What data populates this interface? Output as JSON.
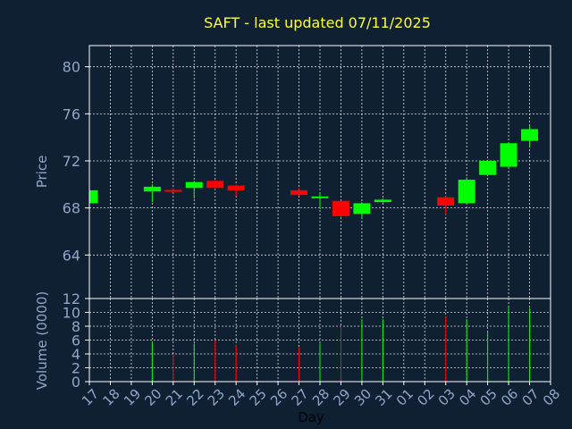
{
  "chart_data": {
    "type": "candlestick",
    "title": "SAFT - last updated 07/11/2025",
    "xlabel": "Day",
    "x_ticks": [
      "17",
      "18",
      "19",
      "20",
      "21",
      "22",
      "23",
      "24",
      "25",
      "26",
      "27",
      "28",
      "29",
      "30",
      "31",
      "01",
      "02",
      "03",
      "04",
      "05",
      "06",
      "07",
      "08"
    ],
    "price_panel": {
      "ylabel": "Price",
      "ylim": [
        60.3,
        81.8
      ],
      "yticks": [
        64,
        68,
        72,
        76,
        80
      ],
      "grid": true
    },
    "volume_panel": {
      "ylabel": "Volume (0000)",
      "ylim": [
        0,
        12
      ],
      "yticks": [
        0,
        2,
        4,
        6,
        8,
        10,
        12
      ],
      "grid": true
    },
    "up_color": "#00ff00",
    "down_color": "#ff0000",
    "candles": [
      {
        "x": "17",
        "open": 68.4,
        "close": 69.5,
        "high": 69.5,
        "low": 68.4,
        "volume": 0
      },
      {
        "x": "20",
        "open": 69.4,
        "close": 69.8,
        "high": 70.0,
        "low": 68.5,
        "volume": 5.8
      },
      {
        "x": "21",
        "open": 69.5,
        "close": 69.4,
        "high": 69.7,
        "low": 69.3,
        "volume": 4.0
      },
      {
        "x": "22",
        "open": 69.7,
        "close": 70.2,
        "high": 70.3,
        "low": 68.8,
        "volume": 5.5
      },
      {
        "x": "23",
        "open": 70.3,
        "close": 69.7,
        "high": 70.4,
        "low": 69.6,
        "volume": 6.0
      },
      {
        "x": "24",
        "open": 69.9,
        "close": 69.5,
        "high": 70.0,
        "low": 69.0,
        "volume": 5.3
      },
      {
        "x": "27",
        "open": 69.5,
        "close": 69.1,
        "high": 69.7,
        "low": 69.0,
        "volume": 5.0
      },
      {
        "x": "28",
        "open": 68.9,
        "close": 68.9,
        "high": 69.3,
        "low": 67.9,
        "volume": 5.5
      },
      {
        "x": "29",
        "open": 68.6,
        "close": 67.3,
        "high": 68.6,
        "low": 67.2,
        "volume": 8.0
      },
      {
        "x": "30",
        "open": 67.5,
        "close": 68.4,
        "high": 68.5,
        "low": 67.1,
        "volume": 9.0
      },
      {
        "x": "31",
        "open": 68.5,
        "close": 68.7,
        "high": 68.8,
        "low": 68.4,
        "volume": 9.0
      },
      {
        "x": "03",
        "open": 68.9,
        "close": 68.2,
        "high": 69.0,
        "low": 67.4,
        "volume": 9.4
      },
      {
        "x": "04",
        "open": 68.4,
        "close": 70.4,
        "high": 70.6,
        "low": 68.3,
        "volume": 9.0
      },
      {
        "x": "05",
        "open": 70.8,
        "close": 72.0,
        "high": 72.1,
        "low": 70.7,
        "volume": 7.3
      },
      {
        "x": "06",
        "open": 71.5,
        "close": 73.5,
        "high": 73.6,
        "low": 71.4,
        "volume": 10.8
      },
      {
        "x": "07",
        "open": 73.7,
        "close": 74.7,
        "high": 75.0,
        "low": 73.2,
        "volume": 10.6
      }
    ]
  }
}
